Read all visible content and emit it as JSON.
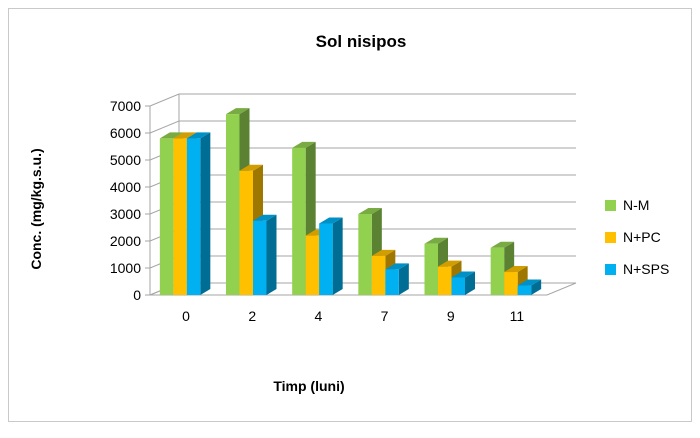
{
  "chart_data": {
    "type": "bar",
    "style": "3d-clustered-column",
    "title": "Sol nisipos",
    "xlabel": "Timp (luni)",
    "ylabel": "Conc. (mg/kg.s.u.)",
    "categories": [
      "0",
      "2",
      "4",
      "7",
      "9",
      "11"
    ],
    "yticks": [
      "0",
      "1000",
      "2000",
      "3000",
      "4000",
      "5000",
      "6000",
      "7000"
    ],
    "ylim": [
      0,
      7000
    ],
    "grid": true,
    "legend_position": "right",
    "series": [
      {
        "name": "N-M",
        "color": "#92D050",
        "values": [
          5800,
          6700,
          5450,
          3000,
          1900,
          1750
        ]
      },
      {
        "name": "N+PC",
        "color": "#FFC000",
        "values": [
          5800,
          4600,
          2200,
          1450,
          1050,
          850
        ]
      },
      {
        "name": "N+SPS",
        "color": "#00B0F0",
        "values": [
          5800,
          2750,
          2650,
          950,
          650,
          350
        ]
      }
    ]
  }
}
